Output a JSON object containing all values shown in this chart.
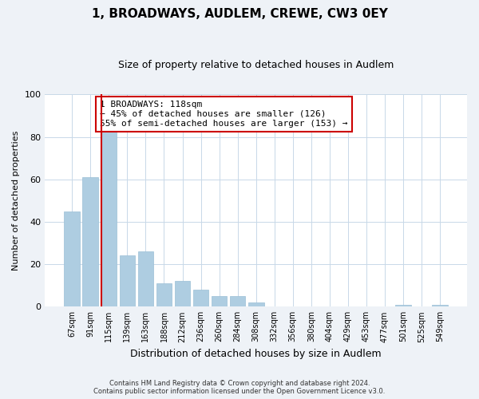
{
  "title": "1, BROADWAYS, AUDLEM, CREWE, CW3 0EY",
  "subtitle": "Size of property relative to detached houses in Audlem",
  "xlabel": "Distribution of detached houses by size in Audlem",
  "ylabel": "Number of detached properties",
  "bar_labels": [
    "67sqm",
    "91sqm",
    "115sqm",
    "139sqm",
    "163sqm",
    "188sqm",
    "212sqm",
    "236sqm",
    "260sqm",
    "284sqm",
    "308sqm",
    "332sqm",
    "356sqm",
    "380sqm",
    "404sqm",
    "429sqm",
    "453sqm",
    "477sqm",
    "501sqm",
    "525sqm",
    "549sqm"
  ],
  "bar_values": [
    45,
    61,
    85,
    24,
    26,
    11,
    12,
    8,
    5,
    5,
    2,
    0,
    0,
    0,
    0,
    0,
    0,
    0,
    1,
    0,
    1
  ],
  "bar_color": "#aecde1",
  "bar_edge_color": "#9bbfd6",
  "property_line_color": "#cc0000",
  "annotation_text": "1 BROADWAYS: 118sqm\n← 45% of detached houses are smaller (126)\n55% of semi-detached houses are larger (153) →",
  "annotation_box_color": "#ffffff",
  "annotation_box_edge_color": "#cc0000",
  "ylim": [
    0,
    100
  ],
  "footer_line1": "Contains HM Land Registry data © Crown copyright and database right 2024.",
  "footer_line2": "Contains public sector information licensed under the Open Government Licence v3.0.",
  "background_color": "#eef2f7",
  "plot_background_color": "#ffffff",
  "grid_color": "#c8d8e8",
  "property_line_x": 2.0
}
